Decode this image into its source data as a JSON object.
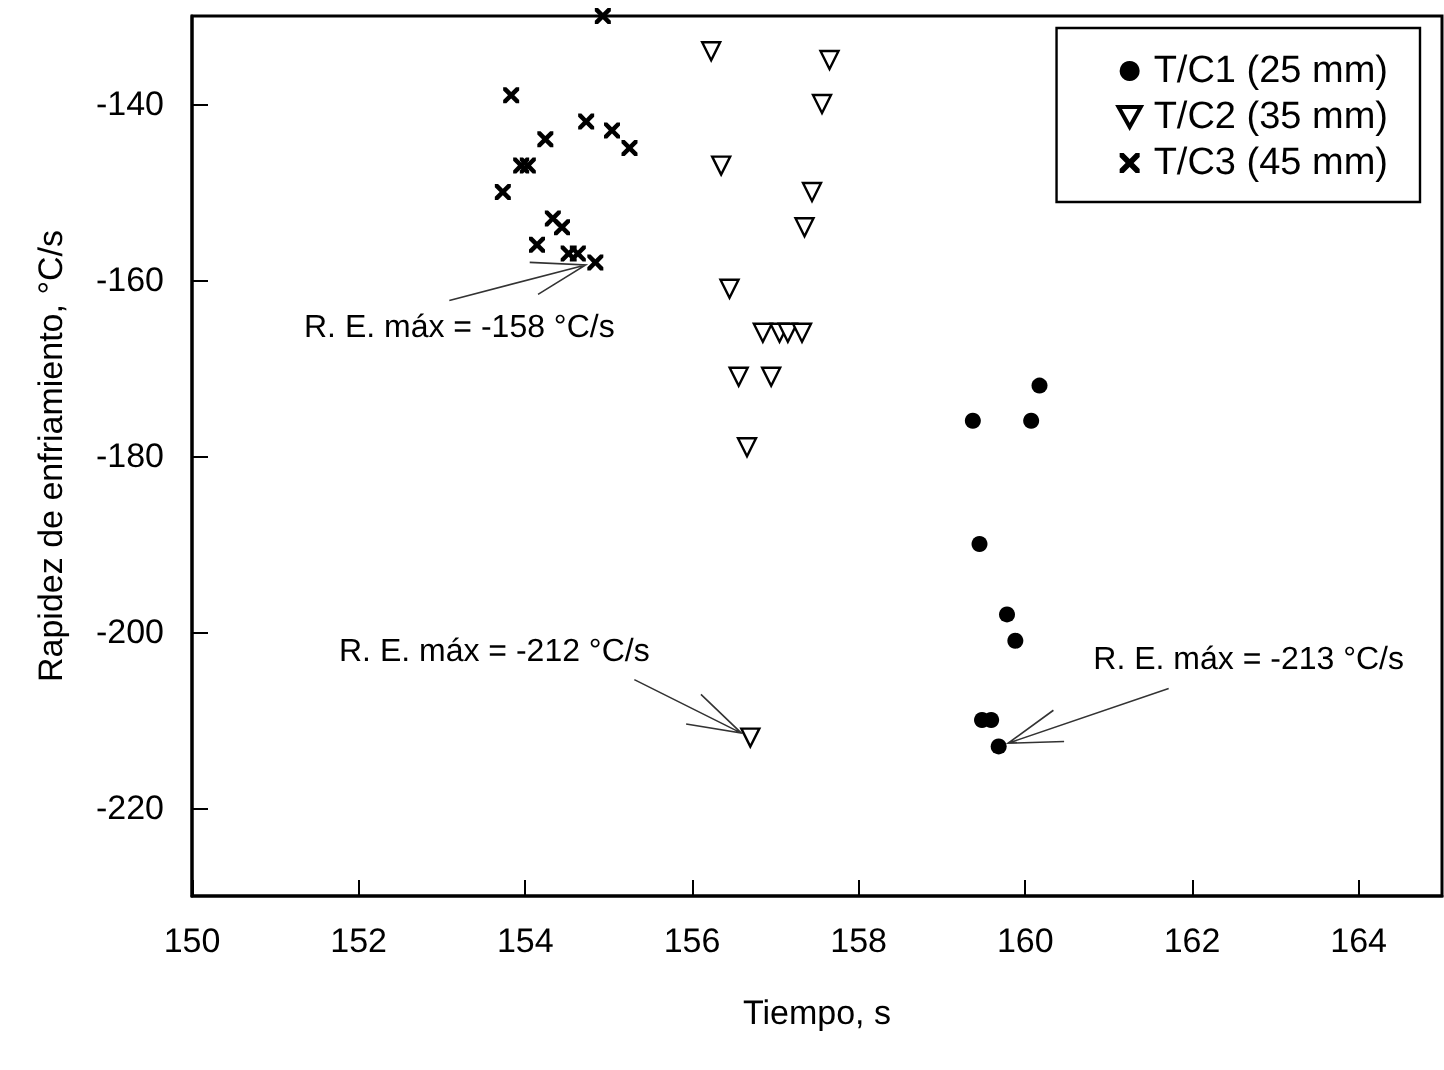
{
  "chart_data": {
    "type": "scatter",
    "xlabel": "Tiempo, s",
    "ylabel": "Rapidez de enfriamiento, °C/s",
    "xlim": [
      150,
      165
    ],
    "xticks": [
      150,
      152,
      154,
      156,
      158,
      160,
      162,
      164
    ],
    "ylim": [
      -230,
      -130
    ],
    "yticks": [
      -140,
      -160,
      -180,
      -200,
      -220
    ],
    "grid": false,
    "legend": "top right",
    "series": [
      {
        "name": "T/C1 (25 mm)",
        "color": "#000000",
        "marker": "circle",
        "x": [
          160.17,
          159.37,
          160.07,
          159.45,
          159.78,
          159.88,
          159.48,
          159.59,
          159.68
        ],
        "values": [
          -172,
          -176,
          -176,
          -190,
          -198,
          -201,
          -210,
          -210,
          -213
        ]
      },
      {
        "name": "T/C2 (35 mm)",
        "color": "#000000",
        "marker": "triangle",
        "x": [
          156.23,
          156.35,
          156.45,
          156.56,
          156.66,
          156.95,
          156.85,
          157.05,
          157.15,
          157.32,
          157.35,
          157.65,
          157.56,
          157.44,
          156.7
        ],
        "values": [
          -134,
          -147,
          -161,
          -171,
          -179,
          -171,
          -166,
          -166,
          -166,
          -166,
          -154,
          -135,
          -140,
          -150,
          -212
        ]
      },
      {
        "name": "T/C3 (45 mm)",
        "color": "#000000",
        "marker": "cross",
        "x": [
          154.93,
          153.83,
          153.73,
          153.95,
          154.03,
          154.24,
          154.73,
          155.04,
          155.25,
          154.33,
          154.44,
          154.14,
          154.52,
          154.63,
          154.84
        ],
        "values": [
          -130,
          -139,
          -150,
          -147,
          -147,
          -144,
          -142,
          -143,
          -145,
          -153,
          -154,
          -156,
          -157,
          -157,
          -158
        ]
      }
    ],
    "annotations": [
      {
        "text": "R. E. máx = -158 °C/s",
        "x": 154.84,
        "y": -158
      },
      {
        "text": "R. E. máx = -212 °C/s",
        "x": 156.7,
        "y": -212
      },
      {
        "text": "R. E. máx = -213 °C/s",
        "x": 159.68,
        "y": -213
      }
    ]
  }
}
